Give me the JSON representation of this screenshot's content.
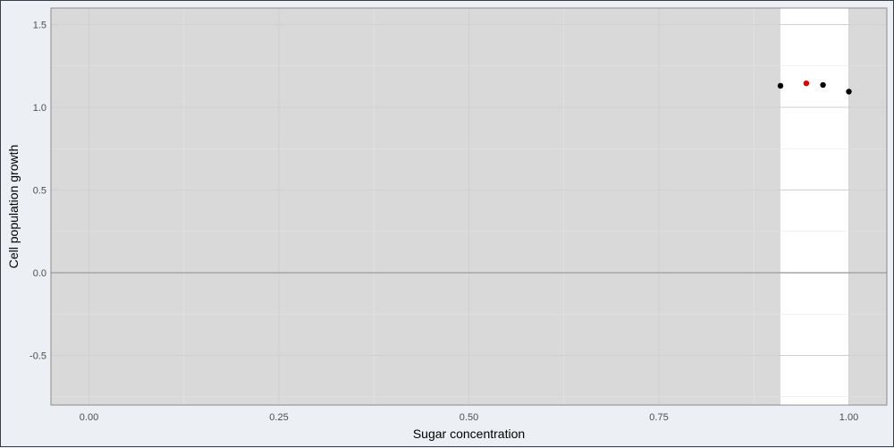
{
  "chart_data": {
    "type": "scatter",
    "title": "",
    "xlabel": "Sugar concentration",
    "ylabel": "Cell population growth",
    "xlim": [
      -0.05,
      1.05
    ],
    "ylim": [
      -0.8,
      1.6
    ],
    "x_ticks": [
      0.0,
      0.25,
      0.5,
      0.75,
      1.0
    ],
    "x_tick_labels": [
      "0.00",
      "0.25",
      "0.50",
      "0.75",
      "1.00"
    ],
    "y_ticks": [
      -0.5,
      0.0,
      0.5,
      1.0,
      1.5
    ],
    "y_tick_labels": [
      "-0.5",
      "0.0",
      "0.5",
      "1.0",
      "1.5"
    ],
    "grid": true,
    "reference_line_y": 0.0,
    "highlight_interval": [
      0.91,
      1.0
    ],
    "points": [
      {
        "x": 0.91,
        "y": 1.13,
        "color": "#000000"
      },
      {
        "x": 0.944,
        "y": 1.145,
        "color": "#e00000"
      },
      {
        "x": 0.966,
        "y": 1.135,
        "color": "#000000"
      },
      {
        "x": 1.0,
        "y": 1.095,
        "color": "#000000"
      }
    ]
  },
  "colors": {
    "page_background": "#ecf0f5",
    "shaded_region": "#d9d9d9",
    "highlight_region": "#ffffff",
    "grid_major": "#cfcfcf",
    "grid_minor": "#e6e6e6",
    "zero_line": "#a6a6a6",
    "panel_border": "#8c8c8c"
  }
}
